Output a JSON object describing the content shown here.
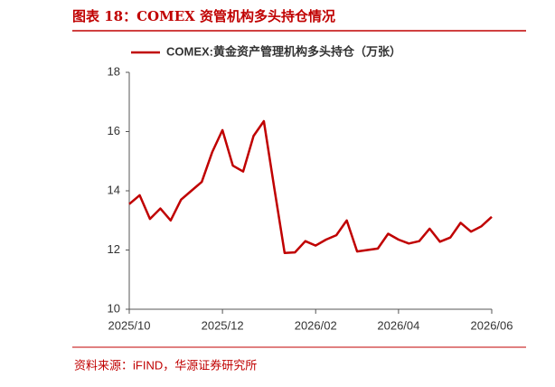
{
  "header": {
    "title": "图表 18：COMEX 资管机构多头持仓情况"
  },
  "chart_data": {
    "type": "line",
    "categories": [
      "2025/10",
      null,
      null,
      null,
      null,
      null,
      null,
      null,
      null,
      "2025/12",
      null,
      null,
      null,
      null,
      null,
      null,
      null,
      null,
      "2026/02",
      null,
      null,
      null,
      null,
      null,
      null,
      null,
      "2026/04",
      null,
      null,
      null,
      null,
      null,
      null,
      null,
      null,
      "2026/06"
    ],
    "series": [
      {
        "name": "COMEX:黄金资产管理机构多头持仓（万张）",
        "color": "#c00000",
        "values": [
          13.55,
          13.85,
          13.05,
          13.4,
          13.0,
          13.7,
          14.0,
          14.3,
          15.3,
          16.05,
          14.85,
          14.65,
          15.85,
          16.35,
          14.1,
          11.9,
          11.92,
          12.3,
          12.15,
          12.35,
          12.5,
          13.0,
          11.95,
          12.0,
          12.05,
          12.55,
          12.35,
          12.22,
          12.3,
          12.72,
          12.28,
          12.42,
          12.92,
          12.62,
          12.8,
          13.12
        ]
      }
    ],
    "ylim": [
      10,
      18
    ],
    "yticks": [
      10,
      12,
      14,
      16,
      18
    ],
    "grid": false,
    "legend": "top"
  },
  "footer": {
    "source": "资料来源：iFIND，华源证券研究所"
  }
}
